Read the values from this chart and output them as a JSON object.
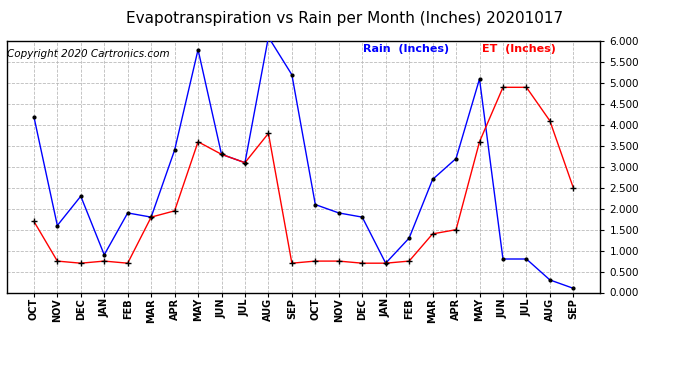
{
  "title": "Evapotranspiration vs Rain per Month (Inches) 20201017",
  "copyright": "Copyright 2020 Cartronics.com",
  "labels": [
    "OCT",
    "NOV",
    "DEC",
    "JAN",
    "FEB",
    "MAR",
    "APR",
    "MAY",
    "JUN",
    "JUL",
    "AUG",
    "SEP",
    "OCT",
    "NOV",
    "DEC",
    "JAN",
    "FEB",
    "MAR",
    "APR",
    "MAY",
    "JUN",
    "JUL",
    "AUG",
    "SEP"
  ],
  "rain": [
    4.2,
    1.6,
    2.3,
    0.9,
    1.9,
    1.8,
    3.4,
    5.8,
    3.3,
    3.1,
    6.1,
    5.2,
    2.1,
    1.9,
    1.8,
    0.7,
    1.3,
    2.7,
    3.2,
    5.1,
    0.8,
    0.8,
    0.3,
    0.1
  ],
  "et": [
    1.7,
    0.75,
    0.7,
    0.75,
    0.7,
    1.8,
    1.95,
    3.6,
    3.3,
    3.1,
    3.8,
    0.7,
    0.75,
    0.75,
    0.7,
    0.7,
    0.75,
    1.4,
    1.5,
    3.6,
    4.9,
    4.9,
    4.1,
    2.5
  ],
  "rain_color": "#0000ff",
  "et_color": "#ff0000",
  "bg_color": "#ffffff",
  "grid_color": "#bbbbbb",
  "ylim": [
    0.0,
    6.0
  ],
  "yticks": [
    0.0,
    0.5,
    1.0,
    1.5,
    2.0,
    2.5,
    3.0,
    3.5,
    4.0,
    4.5,
    5.0,
    5.5,
    6.0
  ],
  "title_fontsize": 11,
  "copyright_fontsize": 7.5,
  "legend_rain": "Rain  (Inches)",
  "legend_et": "ET  (Inches)"
}
